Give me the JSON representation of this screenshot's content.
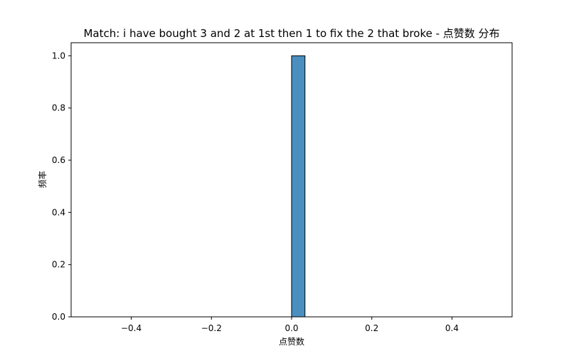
{
  "chart_data": {
    "type": "bar",
    "title": "Match: i have bought 3 and 2 at 1st then 1 to fix the 2 that broke - 点赞数 分布",
    "xlabel": "点赞数",
    "ylabel": "频率",
    "xlim": [
      -0.55,
      0.55
    ],
    "ylim": [
      0,
      1.05
    ],
    "xticks": [
      -0.4,
      -0.2,
      0.0,
      0.2,
      0.4
    ],
    "xtick_labels": [
      "−0.4",
      "−0.2",
      "0.0",
      "0.2",
      "0.4"
    ],
    "yticks": [
      0.0,
      0.2,
      0.4,
      0.6,
      0.8,
      1.0
    ],
    "ytick_labels": [
      "0.0",
      "0.2",
      "0.4",
      "0.6",
      "0.8",
      "1.0"
    ],
    "bins": [
      {
        "x0": -0.5,
        "x1": -0.4667,
        "value": 0
      },
      {
        "x0": -0.4667,
        "x1": -0.4333,
        "value": 0
      },
      {
        "x0": -0.4333,
        "x1": -0.4,
        "value": 0
      },
      {
        "x0": -0.4,
        "x1": -0.3667,
        "value": 0
      },
      {
        "x0": -0.3667,
        "x1": -0.3333,
        "value": 0
      },
      {
        "x0": -0.3333,
        "x1": -0.3,
        "value": 0
      },
      {
        "x0": -0.3,
        "x1": -0.2667,
        "value": 0
      },
      {
        "x0": -0.2667,
        "x1": -0.2333,
        "value": 0
      },
      {
        "x0": -0.2333,
        "x1": -0.2,
        "value": 0
      },
      {
        "x0": -0.2,
        "x1": -0.1667,
        "value": 0
      },
      {
        "x0": -0.1667,
        "x1": -0.1333,
        "value": 0
      },
      {
        "x0": -0.1333,
        "x1": -0.1,
        "value": 0
      },
      {
        "x0": -0.1,
        "x1": -0.0667,
        "value": 0
      },
      {
        "x0": -0.0667,
        "x1": -0.0333,
        "value": 0
      },
      {
        "x0": -0.0333,
        "x1": 0.0,
        "value": 0
      },
      {
        "x0": 0.0,
        "x1": 0.0333,
        "value": 1
      },
      {
        "x0": 0.0333,
        "x1": 0.0667,
        "value": 0
      },
      {
        "x0": 0.0667,
        "x1": 0.1,
        "value": 0
      },
      {
        "x0": 0.1,
        "x1": 0.1333,
        "value": 0
      },
      {
        "x0": 0.1333,
        "x1": 0.1667,
        "value": 0
      },
      {
        "x0": 0.1667,
        "x1": 0.2,
        "value": 0
      },
      {
        "x0": 0.2,
        "x1": 0.2333,
        "value": 0
      },
      {
        "x0": 0.2333,
        "x1": 0.2667,
        "value": 0
      },
      {
        "x0": 0.2667,
        "x1": 0.3,
        "value": 0
      },
      {
        "x0": 0.3,
        "x1": 0.3333,
        "value": 0
      },
      {
        "x0": 0.3333,
        "x1": 0.3667,
        "value": 0
      },
      {
        "x0": 0.3667,
        "x1": 0.4,
        "value": 0
      },
      {
        "x0": 0.4,
        "x1": 0.4333,
        "value": 0
      },
      {
        "x0": 0.4333,
        "x1": 0.4667,
        "value": 0
      },
      {
        "x0": 0.4667,
        "x1": 0.5,
        "value": 0
      }
    ],
    "grid": false,
    "legend": "none",
    "bar_color": "#4a8fc0",
    "edge_color": "#000000"
  }
}
